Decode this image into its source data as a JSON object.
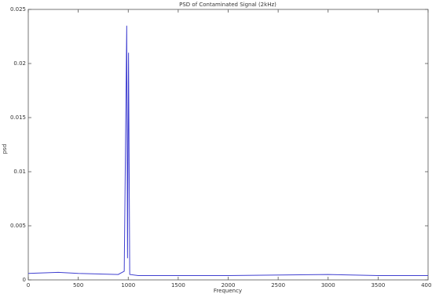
{
  "chart_data": {
    "type": "line",
    "title": "PSD of Contaminated Signal (2kHz)",
    "x_label": "Frequency",
    "y_label": "psd",
    "x": [
      0,
      300,
      500,
      900,
      960,
      985,
      993,
      1003,
      1015,
      1100,
      2000,
      3000,
      3500,
      4000
    ],
    "series": [
      {
        "name": "psd",
        "color": "#4040d0",
        "values": [
          0.0006,
          0.0007,
          0.0006,
          0.0005,
          0.0008,
          0.0235,
          0.002,
          0.021,
          0.0005,
          0.0004,
          0.0004,
          0.0005,
          0.0004,
          0.0004
        ]
      }
    ],
    "xlim": [
      0,
      4000
    ],
    "xticks": [
      0,
      500,
      1000,
      1500,
      2000,
      2500,
      3000,
      3500,
      4000
    ],
    "ylim": [
      0,
      0.025
    ],
    "yticks": [
      0,
      0.005,
      0.01,
      0.015,
      0.02,
      0.025
    ]
  }
}
